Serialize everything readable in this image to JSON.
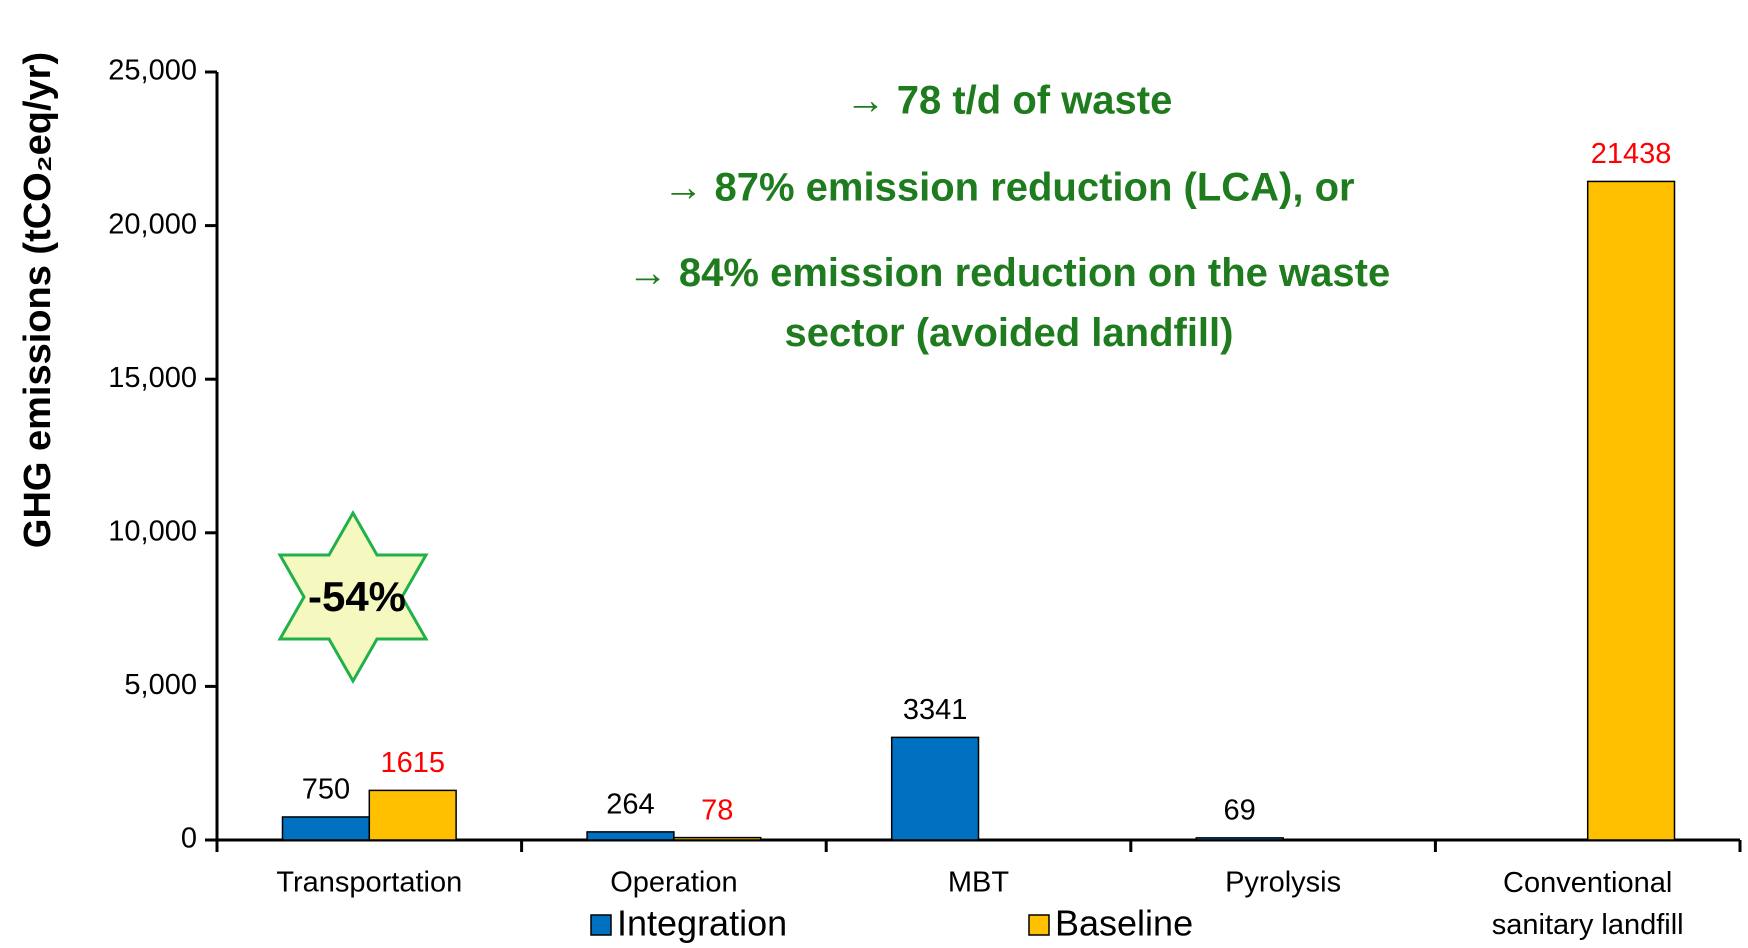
{
  "chart_data": {
    "type": "bar",
    "y_label": "GHG emissions (tCO₂eq/yr)",
    "categories": [
      "Transportation",
      "Operation",
      "MBT",
      "Pyrolysis",
      "Conventional\nsanitary landfill"
    ],
    "series": [
      {
        "name": "Integration",
        "color": "#0070c0",
        "label_color": "#000000",
        "values": [
          750,
          264,
          3341,
          69,
          null
        ]
      },
      {
        "name": "Baseline",
        "color": "#ffc000",
        "label_color": "#ff0000",
        "values": [
          1615,
          78,
          null,
          null,
          21438
        ]
      }
    ],
    "ylim": [
      0,
      25000
    ],
    "yticks": [
      0,
      {
        "value": 5000,
        "label": "5,000"
      },
      {
        "value": 10000,
        "label": "10,000"
      },
      {
        "value": 15000,
        "label": "15,000"
      },
      {
        "value": 20000,
        "label": "20,000"
      },
      {
        "value": 25000,
        "label": "25,000"
      }
    ],
    "annotations": [
      "→ 78 t/d of waste",
      "→ 87% emission reduction (LCA), or",
      "→ 84% emission reduction on the waste\nsector (avoided landfill)"
    ],
    "badge": "-54%"
  }
}
